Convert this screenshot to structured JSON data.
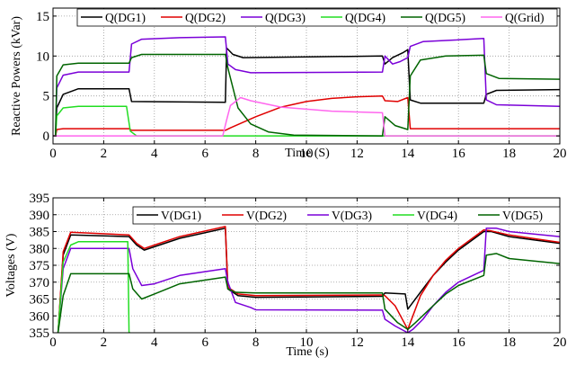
{
  "chart_data": [
    {
      "type": "line",
      "xlabel": "Time (S)",
      "ylabel": "Reactive Powers (kVar)",
      "xlim": [
        0,
        20
      ],
      "ylim": [
        -1,
        16
      ],
      "xticks": [
        "0",
        "2",
        "4",
        "6",
        "8",
        "10",
        "12",
        "14",
        "16",
        "18",
        "20"
      ],
      "yticks": [
        "0",
        "5",
        "10",
        "15"
      ],
      "grid": "dotted",
      "legend": "top, single row",
      "series": [
        {
          "name": "Q(DG1)",
          "color": "#000000",
          "points": [
            [
              0,
              0
            ],
            [
              0.1,
              0
            ],
            [
              0.15,
              3.5
            ],
            [
              0.4,
              5.2
            ],
            [
              1,
              5.9
            ],
            [
              3,
              5.9
            ],
            [
              3.1,
              4.3
            ],
            [
              6.8,
              4.2
            ],
            [
              6.85,
              11
            ],
            [
              7.1,
              10.2
            ],
            [
              7.5,
              9.8
            ],
            [
              13,
              10
            ],
            [
              13.1,
              9
            ],
            [
              13.4,
              9.8
            ],
            [
              13.8,
              10.4
            ],
            [
              14.0,
              10.8
            ],
            [
              14.1,
              4.5
            ],
            [
              14.5,
              4.1
            ],
            [
              17,
              4.1
            ],
            [
              17.1,
              5.2
            ],
            [
              17.5,
              5.7
            ],
            [
              20,
              5.8
            ]
          ]
        },
        {
          "name": "Q(DG2)",
          "color": "#e00000",
          "points": [
            [
              0,
              0
            ],
            [
              0.1,
              0
            ],
            [
              0.15,
              0.8
            ],
            [
              0.4,
              0.9
            ],
            [
              3,
              0.9
            ],
            [
              3.1,
              0.7
            ],
            [
              6.8,
              0.7
            ],
            [
              7,
              1
            ],
            [
              8,
              2.4
            ],
            [
              9,
              3.6
            ],
            [
              10,
              4.3
            ],
            [
              11,
              4.7
            ],
            [
              12,
              4.9
            ],
            [
              13,
              5
            ],
            [
              13.1,
              4.4
            ],
            [
              13.6,
              4.3
            ],
            [
              14,
              4.8
            ],
            [
              14.1,
              0.9
            ],
            [
              17,
              0.9
            ],
            [
              20,
              0.9
            ]
          ]
        },
        {
          "name": "Q(DG3)",
          "color": "#7a00d8",
          "points": [
            [
              0,
              0
            ],
            [
              0.1,
              0
            ],
            [
              0.15,
              6
            ],
            [
              0.4,
              7.6
            ],
            [
              1,
              8
            ],
            [
              3,
              8
            ],
            [
              3.1,
              11.5
            ],
            [
              3.5,
              12.1
            ],
            [
              5,
              12.3
            ],
            [
              6.8,
              12.4
            ],
            [
              6.9,
              9
            ],
            [
              7.2,
              8.3
            ],
            [
              7.8,
              7.9
            ],
            [
              13,
              8
            ],
            [
              13.1,
              10
            ],
            [
              13.4,
              9
            ],
            [
              13.7,
              9.3
            ],
            [
              14,
              9.8
            ],
            [
              14.1,
              11.2
            ],
            [
              14.6,
              11.8
            ],
            [
              17,
              12.2
            ],
            [
              17.1,
              4.5
            ],
            [
              17.5,
              3.9
            ],
            [
              20,
              3.7
            ]
          ]
        },
        {
          "name": "Q(DG4)",
          "color": "#22dd22",
          "points": [
            [
              0,
              0
            ],
            [
              0.1,
              0
            ],
            [
              0.15,
              2.5
            ],
            [
              0.4,
              3.5
            ],
            [
              1,
              3.7
            ],
            [
              2.9,
              3.7
            ],
            [
              3.05,
              0.6
            ],
            [
              3.3,
              0
            ],
            [
              20,
              0
            ]
          ]
        },
        {
          "name": "Q(DG5)",
          "color": "#006400",
          "points": [
            [
              0,
              0
            ],
            [
              0.1,
              0
            ],
            [
              0.15,
              7.5
            ],
            [
              0.4,
              8.9
            ],
            [
              1,
              9.1
            ],
            [
              3,
              9.1
            ],
            [
              3.1,
              9.8
            ],
            [
              3.5,
              10.2
            ],
            [
              6.8,
              10.2
            ],
            [
              6.9,
              8.5
            ],
            [
              7.3,
              3.5
            ],
            [
              7.8,
              1.5
            ],
            [
              8.5,
              0.5
            ],
            [
              9.5,
              0.1
            ],
            [
              13,
              0
            ],
            [
              13.1,
              2.4
            ],
            [
              13.5,
              1.3
            ],
            [
              14,
              0.8
            ],
            [
              14.1,
              7.5
            ],
            [
              14.5,
              9.5
            ],
            [
              15.5,
              10
            ],
            [
              17,
              10.1
            ],
            [
              17.1,
              7.8
            ],
            [
              17.6,
              7.2
            ],
            [
              20,
              7.1
            ]
          ]
        },
        {
          "name": "Q(Grid)",
          "color": "#ff66ee",
          "points": [
            [
              0,
              0
            ],
            [
              6.7,
              0
            ],
            [
              6.85,
              2
            ],
            [
              7,
              3.8
            ],
            [
              7.4,
              4.8
            ],
            [
              7.8,
              4.4
            ],
            [
              9,
              3.6
            ],
            [
              11,
              3.1
            ],
            [
              13,
              2.9
            ],
            [
              13.1,
              0
            ],
            [
              20,
              0
            ]
          ]
        }
      ]
    },
    {
      "type": "line",
      "xlabel": "Time (s)",
      "ylabel": "Voltages (V)",
      "xlim": [
        0,
        20
      ],
      "ylim": [
        355,
        395
      ],
      "xticks": [
        "0",
        "2",
        "4",
        "6",
        "8",
        "10",
        "12",
        "14",
        "16",
        "18",
        "20"
      ],
      "yticks": [
        "355",
        "360",
        "365",
        "370",
        "375",
        "380",
        "385",
        "390",
        "395"
      ],
      "grid": "dotted",
      "legend": "top, single row",
      "series": [
        {
          "name": "V(DG1)",
          "color": "#000000",
          "points": [
            [
              0.2,
              355
            ],
            [
              0.4,
              378
            ],
            [
              0.7,
              384
            ],
            [
              3,
              383.5
            ],
            [
              3.3,
              381
            ],
            [
              3.6,
              379.5
            ],
            [
              4,
              380.5
            ],
            [
              5,
              383
            ],
            [
              6.8,
              386
            ],
            [
              6.9,
              368
            ],
            [
              7.3,
              366
            ],
            [
              8,
              365.5
            ],
            [
              13,
              365.8
            ],
            [
              13.1,
              366.8
            ],
            [
              13.9,
              366.5
            ],
            [
              14.0,
              362
            ],
            [
              14.5,
              367
            ],
            [
              15,
              372
            ],
            [
              15.5,
              376
            ],
            [
              16,
              379.5
            ],
            [
              17,
              385
            ],
            [
              17.3,
              385
            ],
            [
              18,
              383.5
            ],
            [
              20,
              381.5
            ]
          ]
        },
        {
          "name": "V(DG2)",
          "color": "#e00000",
          "points": [
            [
              0.2,
              355
            ],
            [
              0.4,
              379
            ],
            [
              0.7,
              384.8
            ],
            [
              3,
              384
            ],
            [
              3.3,
              381.5
            ],
            [
              3.6,
              380
            ],
            [
              4,
              381
            ],
            [
              5,
              383.5
            ],
            [
              6.8,
              386.5
            ],
            [
              6.9,
              368.5
            ],
            [
              7.3,
              366.5
            ],
            [
              8,
              366
            ],
            [
              13,
              366.2
            ],
            [
              13.1,
              366
            ],
            [
              13.5,
              363
            ],
            [
              14,
              356
            ],
            [
              14.5,
              366
            ],
            [
              15,
              372
            ],
            [
              15.5,
              376.5
            ],
            [
              16,
              380
            ],
            [
              17,
              385.5
            ],
            [
              17.3,
              385.2
            ],
            [
              18,
              384
            ],
            [
              20,
              381.8
            ]
          ]
        },
        {
          "name": "V(DG3)",
          "color": "#7a00d8",
          "points": [
            [
              0.2,
              355
            ],
            [
              0.4,
              374
            ],
            [
              0.7,
              380
            ],
            [
              3,
              380
            ],
            [
              3.15,
              374
            ],
            [
              3.5,
              369
            ],
            [
              4,
              369.5
            ],
            [
              5,
              372
            ],
            [
              6.8,
              374
            ],
            [
              6.9,
              370
            ],
            [
              7.2,
              364
            ],
            [
              7.8,
              362.5
            ],
            [
              8,
              361.8
            ],
            [
              13,
              361.7
            ],
            [
              13.1,
              359
            ],
            [
              13.5,
              357
            ],
            [
              14,
              355
            ],
            [
              14.2,
              356
            ],
            [
              14.6,
              359
            ],
            [
              15,
              363
            ],
            [
              15.5,
              367
            ],
            [
              16,
              370
            ],
            [
              17,
              373.5
            ],
            [
              17.1,
              386
            ],
            [
              17.5,
              386
            ],
            [
              18,
              385
            ],
            [
              20,
              383.5
            ]
          ]
        },
        {
          "name": "V(DG4)",
          "color": "#22dd22",
          "points": [
            [
              0.2,
              355
            ],
            [
              0.4,
              376
            ],
            [
              0.7,
              381
            ],
            [
              1,
              382
            ],
            [
              2.95,
              382
            ],
            [
              3.0,
              355
            ],
            [
              3.05,
              355
            ]
          ]
        },
        {
          "name": "V(DG5)",
          "color": "#006400",
          "points": [
            [
              0.2,
              355
            ],
            [
              0.4,
              366
            ],
            [
              0.7,
              372.5
            ],
            [
              3,
              372.5
            ],
            [
              3.15,
              368
            ],
            [
              3.5,
              365
            ],
            [
              4,
              366.5
            ],
            [
              5,
              369.5
            ],
            [
              6.8,
              371.5
            ],
            [
              6.9,
              368
            ],
            [
              7.2,
              367
            ],
            [
              8,
              366.8
            ],
            [
              13,
              366.8
            ],
            [
              13.1,
              362
            ],
            [
              13.6,
              358
            ],
            [
              14,
              356
            ],
            [
              14.3,
              358
            ],
            [
              15,
              363
            ],
            [
              15.5,
              366.5
            ],
            [
              16,
              369
            ],
            [
              17,
              372
            ],
            [
              17.1,
              378
            ],
            [
              17.5,
              378.5
            ],
            [
              18,
              377
            ],
            [
              20,
              375.5
            ]
          ]
        }
      ]
    }
  ]
}
